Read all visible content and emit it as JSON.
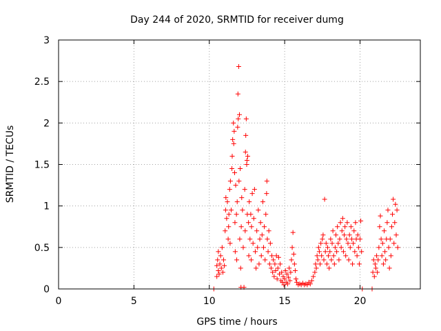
{
  "chart_data": {
    "type": "scatter",
    "title": "Day 244 of 2020, SRMTID for receiver dumg",
    "xlabel": "GPS time / hours",
    "ylabel": "SRMTID / TECUs",
    "xlim": [
      0,
      24
    ],
    "ylim": [
      0,
      3
    ],
    "x_ticks": [
      0,
      5,
      10,
      15,
      20
    ],
    "x_tick_labels": [
      "0",
      "5",
      "10",
      "15",
      "20"
    ],
    "y_ticks": [
      0,
      0.5,
      1,
      1.5,
      2,
      2.5,
      3
    ],
    "y_tick_labels": [
      "0",
      "0.5",
      "1",
      "1.5",
      "2",
      "2.5",
      "3"
    ],
    "grid": true,
    "marker": "+",
    "color": "#ff0000",
    "series": [
      {
        "name": "SRMTID",
        "points": [
          [
            10.3,
            0.0
          ],
          [
            10.5,
            0.15
          ],
          [
            10.5,
            0.28
          ],
          [
            10.55,
            0.35
          ],
          [
            10.6,
            0.22
          ],
          [
            10.6,
            0.45
          ],
          [
            10.65,
            0.18
          ],
          [
            10.7,
            0.3
          ],
          [
            10.75,
            0.4
          ],
          [
            10.8,
            0.25
          ],
          [
            10.85,
            0.5
          ],
          [
            10.9,
            0.2
          ],
          [
            10.95,
            0.35
          ],
          [
            11.0,
            0.28
          ],
          [
            11.05,
            0.7
          ],
          [
            11.08,
            0.95
          ],
          [
            11.1,
            1.1
          ],
          [
            11.15,
            0.85
          ],
          [
            11.2,
            1.05
          ],
          [
            11.25,
            0.6
          ],
          [
            11.28,
            0.75
          ],
          [
            11.3,
            0.9
          ],
          [
            11.35,
            1.2
          ],
          [
            11.38,
            0.55
          ],
          [
            11.4,
            1.3
          ],
          [
            11.45,
            0.95
          ],
          [
            11.5,
            1.45
          ],
          [
            11.52,
            1.6
          ],
          [
            11.55,
            1.8
          ],
          [
            11.6,
            2.0
          ],
          [
            11.62,
            1.75
          ],
          [
            11.65,
            1.9
          ],
          [
            11.68,
            1.4
          ],
          [
            11.7,
            0.8
          ],
          [
            11.72,
            0.45
          ],
          [
            11.75,
            1.25
          ],
          [
            11.8,
            0.9
          ],
          [
            11.82,
            0.35
          ],
          [
            11.85,
            1.05
          ],
          [
            11.88,
            1.95
          ],
          [
            11.9,
            2.35
          ],
          [
            11.92,
            2.05
          ],
          [
            11.95,
            2.68
          ],
          [
            11.97,
            1.3
          ],
          [
            12.0,
            2.1
          ],
          [
            12.02,
            0.6
          ],
          [
            12.05,
            1.45
          ],
          [
            12.08,
            0.25
          ],
          [
            12.1,
            0.02
          ],
          [
            12.12,
            0.75
          ],
          [
            12.15,
            1.1
          ],
          [
            12.2,
            0.95
          ],
          [
            12.25,
            0.5
          ],
          [
            12.3,
            0.02
          ],
          [
            12.35,
            1.2
          ],
          [
            12.38,
            0.7
          ],
          [
            12.4,
            1.65
          ],
          [
            12.42,
            1.85
          ],
          [
            12.45,
            2.05
          ],
          [
            12.48,
            1.5
          ],
          [
            12.5,
            1.55
          ],
          [
            12.52,
            0.9
          ],
          [
            12.55,
            1.6
          ],
          [
            12.6,
            0.8
          ],
          [
            12.62,
            0.4
          ],
          [
            12.65,
            1.05
          ],
          [
            12.7,
            0.6
          ],
          [
            12.75,
            0.9
          ],
          [
            12.78,
            0.35
          ],
          [
            12.8,
            0.75
          ],
          [
            12.85,
            1.15
          ],
          [
            12.9,
            0.55
          ],
          [
            12.95,
            0.85
          ],
          [
            13.0,
            1.2
          ],
          [
            13.05,
            0.45
          ],
          [
            13.1,
            0.25
          ],
          [
            13.15,
            0.7
          ],
          [
            13.2,
            0.5
          ],
          [
            13.25,
            0.95
          ],
          [
            13.3,
            0.3
          ],
          [
            13.35,
            0.6
          ],
          [
            13.4,
            0.8
          ],
          [
            13.45,
            0.4
          ],
          [
            13.5,
            0.65
          ],
          [
            13.55,
            1.05
          ],
          [
            13.6,
            0.5
          ],
          [
            13.65,
            0.75
          ],
          [
            13.7,
            0.35
          ],
          [
            13.75,
            0.9
          ],
          [
            13.8,
            1.15
          ],
          [
            13.82,
            1.3
          ],
          [
            13.85,
            0.6
          ],
          [
            13.9,
            0.45
          ],
          [
            13.95,
            0.7
          ],
          [
            14.0,
            0.3
          ],
          [
            14.05,
            0.55
          ],
          [
            14.1,
            0.25
          ],
          [
            14.15,
            0.4
          ],
          [
            14.2,
            0.2
          ],
          [
            14.25,
            0.35
          ],
          [
            14.3,
            0.15
          ],
          [
            14.35,
            0.3
          ],
          [
            14.4,
            0.22
          ],
          [
            14.45,
            0.4
          ],
          [
            14.5,
            0.12
          ],
          [
            14.55,
            0.25
          ],
          [
            14.6,
            0.38
          ],
          [
            14.65,
            0.18
          ],
          [
            14.7,
            0.3
          ],
          [
            14.75,
            0.1
          ],
          [
            14.8,
            0.2
          ],
          [
            14.85,
            0.08
          ],
          [
            14.9,
            0.15
          ],
          [
            14.95,
            0.05
          ],
          [
            15.0,
            0.12
          ],
          [
            15.05,
            0.22
          ],
          [
            15.1,
            0.08
          ],
          [
            15.15,
            0.18
          ],
          [
            15.2,
            0.06
          ],
          [
            15.25,
            0.14
          ],
          [
            15.3,
            0.25
          ],
          [
            15.35,
            0.1
          ],
          [
            15.4,
            0.2
          ],
          [
            15.45,
            0.35
          ],
          [
            15.5,
            0.5
          ],
          [
            15.55,
            0.68
          ],
          [
            15.6,
            0.42
          ],
          [
            15.65,
            0.3
          ],
          [
            15.7,
            0.22
          ],
          [
            15.75,
            0.12
          ],
          [
            15.8,
            0.08
          ],
          [
            15.9,
            0.05
          ],
          [
            16.0,
            0.06
          ],
          [
            16.1,
            0.05
          ],
          [
            16.2,
            0.07
          ],
          [
            16.3,
            0.05
          ],
          [
            16.4,
            0.06
          ],
          [
            16.5,
            0.05
          ],
          [
            16.6,
            0.08
          ],
          [
            16.7,
            0.06
          ],
          [
            16.8,
            0.1
          ],
          [
            16.9,
            0.15
          ],
          [
            17.0,
            0.2
          ],
          [
            17.05,
            0.3
          ],
          [
            17.1,
            0.25
          ],
          [
            17.15,
            0.4
          ],
          [
            17.2,
            0.35
          ],
          [
            17.25,
            0.5
          ],
          [
            17.3,
            0.45
          ],
          [
            17.35,
            0.3
          ],
          [
            17.4,
            0.55
          ],
          [
            17.45,
            0.4
          ],
          [
            17.5,
            0.6
          ],
          [
            17.55,
            0.65
          ],
          [
            17.6,
            0.35
          ],
          [
            17.65,
            1.08
          ],
          [
            17.7,
            0.45
          ],
          [
            17.75,
            0.55
          ],
          [
            17.8,
            0.3
          ],
          [
            17.85,
            0.5
          ],
          [
            17.9,
            0.4
          ],
          [
            17.95,
            0.25
          ],
          [
            18.0,
            0.45
          ],
          [
            18.05,
            0.6
          ],
          [
            18.1,
            0.35
          ],
          [
            18.15,
            0.55
          ],
          [
            18.2,
            0.7
          ],
          [
            18.25,
            0.4
          ],
          [
            18.3,
            0.3
          ],
          [
            18.35,
            0.5
          ],
          [
            18.4,
            0.65
          ],
          [
            18.45,
            0.45
          ],
          [
            18.5,
            0.75
          ],
          [
            18.55,
            0.55
          ],
          [
            18.6,
            0.35
          ],
          [
            18.65,
            0.6
          ],
          [
            18.7,
            0.8
          ],
          [
            18.75,
            0.5
          ],
          [
            18.8,
            0.7
          ],
          [
            18.85,
            0.85
          ],
          [
            18.9,
            0.45
          ],
          [
            18.95,
            0.65
          ],
          [
            19.0,
            0.75
          ],
          [
            19.05,
            0.4
          ],
          [
            19.1,
            0.6
          ],
          [
            19.15,
            0.8
          ],
          [
            19.2,
            0.55
          ],
          [
            19.25,
            0.35
          ],
          [
            19.3,
            0.65
          ],
          [
            19.35,
            0.5
          ],
          [
            19.4,
            0.75
          ],
          [
            19.45,
            0.6
          ],
          [
            19.5,
            0.3
          ],
          [
            19.55,
            0.55
          ],
          [
            19.6,
            0.7
          ],
          [
            19.65,
            0.45
          ],
          [
            19.7,
            0.8
          ],
          [
            19.75,
            0.6
          ],
          [
            19.8,
            0.4
          ],
          [
            19.85,
            0.65
          ],
          [
            19.9,
            0.5
          ],
          [
            19.95,
            0.3
          ],
          [
            20.0,
            0.6
          ],
          [
            20.05,
            0.82
          ],
          [
            20.1,
            0.45
          ],
          [
            20.15,
            0.0
          ],
          [
            20.8,
            0.0
          ],
          [
            20.85,
            0.2
          ],
          [
            20.9,
            0.35
          ],
          [
            20.95,
            0.15
          ],
          [
            21.0,
            0.3
          ],
          [
            21.05,
            0.25
          ],
          [
            21.1,
            0.4
          ],
          [
            21.15,
            0.2
          ],
          [
            21.2,
            0.35
          ],
          [
            21.25,
            0.5
          ],
          [
            21.3,
            0.75
          ],
          [
            21.35,
            0.88
          ],
          [
            21.4,
            0.6
          ],
          [
            21.45,
            0.4
          ],
          [
            21.5,
            0.55
          ],
          [
            21.55,
            0.3
          ],
          [
            21.6,
            0.7
          ],
          [
            21.65,
            0.45
          ],
          [
            21.7,
            0.35
          ],
          [
            21.75,
            0.6
          ],
          [
            21.8,
            0.8
          ],
          [
            21.85,
            0.95
          ],
          [
            21.9,
            0.5
          ],
          [
            21.95,
            0.25
          ],
          [
            22.0,
            0.6
          ],
          [
            22.05,
            0.4
          ],
          [
            22.1,
            0.75
          ],
          [
            22.15,
            0.9
          ],
          [
            22.2,
            1.08
          ],
          [
            22.25,
            0.55
          ],
          [
            22.3,
            0.8
          ],
          [
            22.35,
            1.02
          ],
          [
            22.4,
            0.65
          ],
          [
            22.45,
            0.95
          ],
          [
            22.5,
            0.5
          ]
        ]
      }
    ]
  }
}
